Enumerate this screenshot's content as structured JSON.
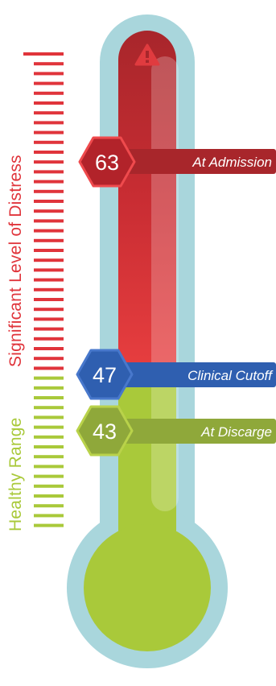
{
  "colors": {
    "distress": "#e0343b",
    "healthy": "#a9c93a",
    "cutoff": "#2f5fb0",
    "shell": "#a9d6dc"
  },
  "side_labels": {
    "distress": "Significant Level of Distress",
    "healthy": "Healthy Range"
  },
  "markers": [
    {
      "value": "63",
      "label": "At Admission",
      "color": "#b2232a"
    },
    {
      "value": "47",
      "label": "Clinical Cutoff",
      "color": "#2f5fb0"
    },
    {
      "value": "43",
      "label": "At Discarge",
      "color": "#8fa83a"
    }
  ],
  "warning_icon": "warning-icon"
}
